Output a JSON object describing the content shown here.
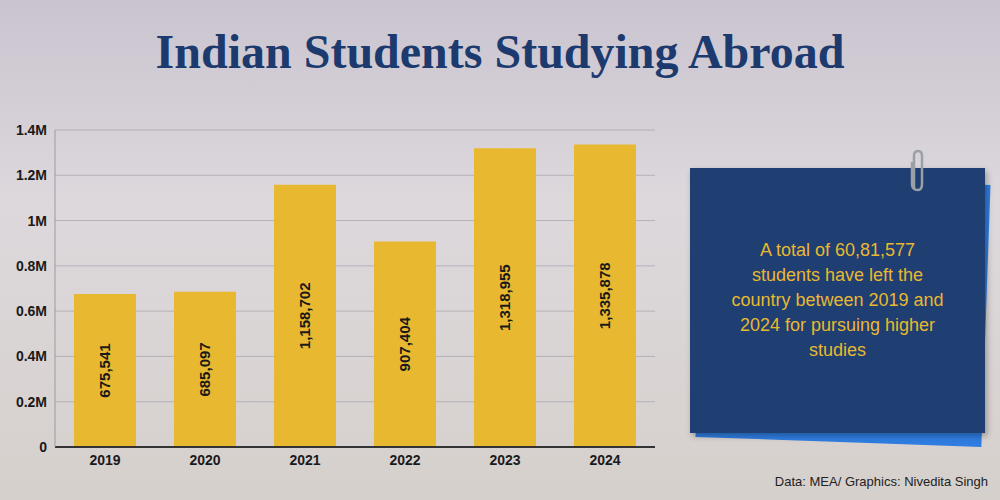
{
  "chart_data": {
    "type": "bar",
    "title": "Indian Students Studying Abroad",
    "categories": [
      "2019",
      "2020",
      "2021",
      "2022",
      "2023",
      "2024"
    ],
    "values": [
      675541,
      685097,
      1158702,
      907404,
      1318955,
      1335878
    ],
    "value_labels": [
      "675,541",
      "685,097",
      "1,158,702",
      "907,404",
      "1,318,955",
      "1,335,878"
    ],
    "color": "#e8b830",
    "ylim": [
      0,
      1400000
    ],
    "yticks": [
      0,
      {
        "value": 200000,
        "label": "0.2M"
      },
      {
        "value": 400000,
        "label": "0.4M"
      },
      {
        "value": 600000,
        "label": "0.6M"
      },
      {
        "value": 800000,
        "label": "0.8M"
      },
      {
        "value": 1000000,
        "label": "1M"
      },
      {
        "value": 1200000,
        "label": "1.2M"
      },
      {
        "value": 1400000,
        "label": "1.4M"
      }
    ],
    "grid": true,
    "data_labels": true,
    "annotation": "A total of 60,81,577 students have left the country between 2019 and 2024 for pursuing higher studies",
    "source": "Data: MEA/ Graphics: Nivedita Singh"
  }
}
